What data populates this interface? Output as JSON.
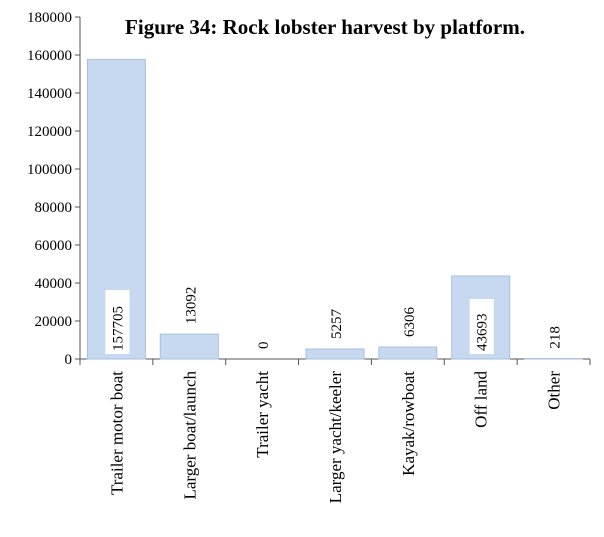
{
  "chart_data": {
    "type": "bar",
    "title": "Figure 34: Rock lobster harvest by platform.",
    "categories": [
      "Trailer motor boat",
      "Larger boat/launch",
      "Trailer yacht",
      "Larger yacht/keeler",
      "Kayak/rowboat",
      "Off land",
      "Other"
    ],
    "values": [
      157705,
      13092,
      0,
      5257,
      6306,
      43693,
      218
    ],
    "data_labels": [
      "157705",
      "13092",
      "0",
      "5257",
      "6306",
      "43693",
      "218"
    ],
    "y_ticks": [
      "0",
      "20000",
      "40000",
      "60000",
      "80000",
      "100000",
      "120000",
      "140000",
      "160000",
      "180000"
    ],
    "ylim": [
      0,
      180000
    ],
    "xlabel": "",
    "ylabel": "",
    "grid": false,
    "legend": "none",
    "bar_color": "#c6d9f1",
    "bar_edge_color": "#a7bfde"
  }
}
